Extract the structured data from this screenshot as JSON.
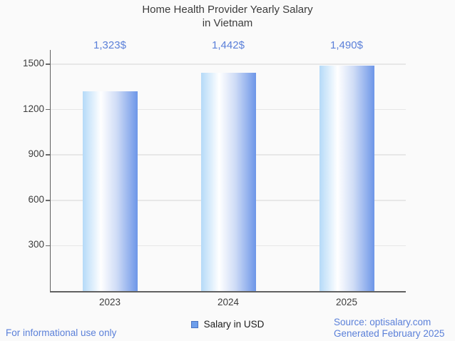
{
  "title": {
    "line1": "Home Health Provider Yearly Salary",
    "line2": "in Vietnam"
  },
  "chart_data": {
    "type": "bar",
    "title": "Home Health Provider Yearly Salary in Vietnam",
    "categories": [
      "2023",
      "2024",
      "2025"
    ],
    "values": [
      1323,
      1442,
      1490
    ],
    "value_labels": [
      "1,323$",
      "1,442$",
      "1,490$"
    ],
    "series": [
      {
        "name": "Salary in USD",
        "values": [
          1323,
          1442,
          1490
        ]
      }
    ],
    "xlabel": "",
    "ylabel": "",
    "ylim": [
      0,
      1500
    ],
    "yticks": [
      300,
      600,
      900,
      1200,
      1500
    ],
    "grid": true,
    "legend_position": "bottom",
    "bar_gradient": [
      "#b5daf8",
      "#ffffff",
      "#6d96e8"
    ]
  },
  "legend": {
    "label": "Salary in USD",
    "marker_color": "#6d9eeb",
    "marker_border": "#4a73c0"
  },
  "footer": {
    "left": "For informational use only",
    "source": "Source: optisalary.com",
    "generated": "Generated February 2025"
  },
  "colors": {
    "accent_text": "#5b80d9",
    "axis": "#616161",
    "grid": "#e7e7e7",
    "tick_text": "#3d3d3d",
    "title_text": "#3c3c3c",
    "background": "#fafafa"
  }
}
